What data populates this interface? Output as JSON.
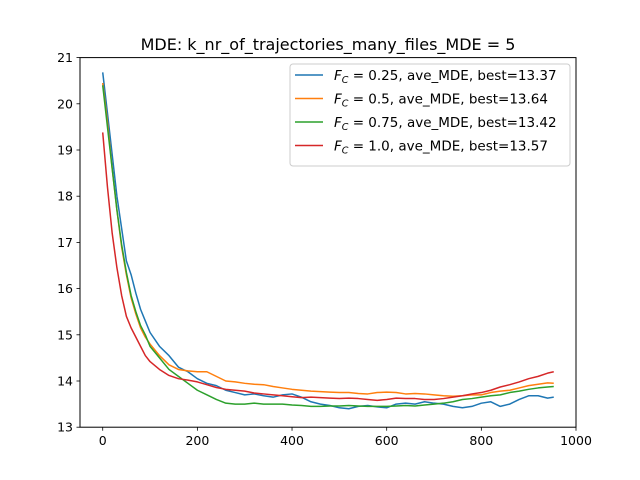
{
  "chart_data": {
    "type": "line",
    "title": "MDE: k_nr_of_trajectories_many_files_MDE = 5",
    "xlabel": "",
    "ylabel": "",
    "xlim": [
      -48,
      1000
    ],
    "ylim": [
      13,
      21
    ],
    "xticks": [
      "0",
      "200",
      "400",
      "600",
      "800",
      "1000"
    ],
    "yticks": [
      "13",
      "14",
      "15",
      "16",
      "17",
      "18",
      "19",
      "20",
      "21"
    ],
    "grid": false,
    "legend_position": "top-right",
    "series": [
      {
        "label_var": "F",
        "label_sub": "C",
        "label_rest": " = 0.25, ave_MDE, best=13.37",
        "color": "#1f77b4",
        "x": [
          0,
          10,
          20,
          30,
          40,
          50,
          60,
          70,
          80,
          90,
          100,
          120,
          140,
          160,
          180,
          200,
          220,
          240,
          260,
          280,
          300,
          320,
          340,
          360,
          380,
          400,
          420,
          440,
          460,
          480,
          500,
          520,
          540,
          560,
          580,
          600,
          620,
          640,
          660,
          680,
          700,
          720,
          740,
          760,
          780,
          800,
          820,
          840,
          860,
          880,
          900,
          920,
          940,
          953
        ],
        "y": [
          20.68,
          19.8,
          18.9,
          18.0,
          17.3,
          16.6,
          16.3,
          15.9,
          15.55,
          15.3,
          15.05,
          14.75,
          14.55,
          14.3,
          14.2,
          14.05,
          13.95,
          13.9,
          13.8,
          13.75,
          13.7,
          13.72,
          13.68,
          13.65,
          13.7,
          13.72,
          13.65,
          13.55,
          13.5,
          13.47,
          13.42,
          13.4,
          13.45,
          13.47,
          13.44,
          13.42,
          13.5,
          13.52,
          13.5,
          13.55,
          13.52,
          13.5,
          13.45,
          13.42,
          13.45,
          13.52,
          13.55,
          13.45,
          13.5,
          13.6,
          13.68,
          13.68,
          13.63,
          13.65
        ]
      },
      {
        "label_var": "F",
        "label_sub": "C",
        "label_rest": " = 0.5, ave_MDE, best=13.64",
        "color": "#ff7f0e",
        "x": [
          0,
          10,
          20,
          30,
          40,
          50,
          60,
          70,
          80,
          90,
          100,
          120,
          140,
          160,
          180,
          200,
          220,
          240,
          260,
          280,
          300,
          320,
          340,
          360,
          380,
          400,
          420,
          440,
          460,
          480,
          500,
          520,
          540,
          560,
          580,
          600,
          620,
          640,
          660,
          680,
          700,
          720,
          740,
          760,
          780,
          800,
          820,
          840,
          860,
          880,
          900,
          920,
          940,
          953
        ],
        "y": [
          20.45,
          19.6,
          18.6,
          17.7,
          16.9,
          16.3,
          15.8,
          15.45,
          15.15,
          14.95,
          14.8,
          14.55,
          14.35,
          14.25,
          14.22,
          14.2,
          14.2,
          14.1,
          14.0,
          13.98,
          13.95,
          13.93,
          13.92,
          13.88,
          13.85,
          13.82,
          13.8,
          13.78,
          13.77,
          13.76,
          13.75,
          13.75,
          13.73,
          13.72,
          13.75,
          13.76,
          13.75,
          13.72,
          13.73,
          13.72,
          13.7,
          13.68,
          13.67,
          13.68,
          13.7,
          13.7,
          13.75,
          13.78,
          13.8,
          13.85,
          13.9,
          13.93,
          13.96,
          13.95
        ]
      },
      {
        "label_var": "F",
        "label_sub": "C",
        "label_rest": " = 0.75, ave_MDE, best=13.42",
        "color": "#2ca02c",
        "x": [
          0,
          10,
          20,
          30,
          40,
          50,
          60,
          70,
          80,
          90,
          100,
          120,
          140,
          160,
          180,
          200,
          220,
          240,
          260,
          280,
          300,
          320,
          340,
          360,
          380,
          400,
          420,
          440,
          460,
          480,
          500,
          520,
          540,
          560,
          580,
          600,
          620,
          640,
          660,
          680,
          700,
          720,
          740,
          760,
          780,
          800,
          820,
          840,
          860,
          880,
          900,
          920,
          940,
          953
        ],
        "y": [
          20.4,
          19.5,
          18.6,
          17.7,
          16.95,
          16.35,
          15.85,
          15.5,
          15.2,
          15.0,
          14.75,
          14.5,
          14.25,
          14.1,
          13.95,
          13.8,
          13.7,
          13.6,
          13.52,
          13.5,
          13.5,
          13.52,
          13.5,
          13.5,
          13.5,
          13.48,
          13.47,
          13.45,
          13.45,
          13.46,
          13.46,
          13.47,
          13.46,
          13.45,
          13.45,
          13.45,
          13.46,
          13.47,
          13.46,
          13.48,
          13.5,
          13.52,
          13.55,
          13.6,
          13.62,
          13.65,
          13.68,
          13.7,
          13.75,
          13.78,
          13.82,
          13.85,
          13.87,
          13.88
        ]
      },
      {
        "label_var": "F",
        "label_sub": "C",
        "label_rest": " = 1.0, ave_MDE, best=13.57",
        "color": "#d62728",
        "x": [
          0,
          10,
          20,
          30,
          40,
          50,
          60,
          70,
          80,
          90,
          100,
          120,
          140,
          160,
          180,
          200,
          220,
          240,
          260,
          280,
          300,
          320,
          340,
          360,
          380,
          400,
          420,
          440,
          460,
          480,
          500,
          520,
          540,
          560,
          580,
          600,
          620,
          640,
          660,
          680,
          700,
          720,
          740,
          760,
          780,
          800,
          820,
          840,
          860,
          880,
          900,
          920,
          940,
          953
        ],
        "y": [
          19.38,
          18.2,
          17.2,
          16.45,
          15.85,
          15.4,
          15.15,
          14.95,
          14.75,
          14.55,
          14.42,
          14.25,
          14.12,
          14.05,
          14.02,
          13.98,
          13.92,
          13.86,
          13.82,
          13.8,
          13.78,
          13.74,
          13.72,
          13.7,
          13.68,
          13.66,
          13.64,
          13.65,
          13.64,
          13.63,
          13.62,
          13.63,
          13.62,
          13.6,
          13.58,
          13.6,
          13.63,
          13.62,
          13.62,
          13.6,
          13.6,
          13.62,
          13.65,
          13.68,
          13.72,
          13.75,
          13.8,
          13.87,
          13.92,
          13.98,
          14.05,
          14.1,
          14.17,
          14.2
        ]
      }
    ]
  }
}
